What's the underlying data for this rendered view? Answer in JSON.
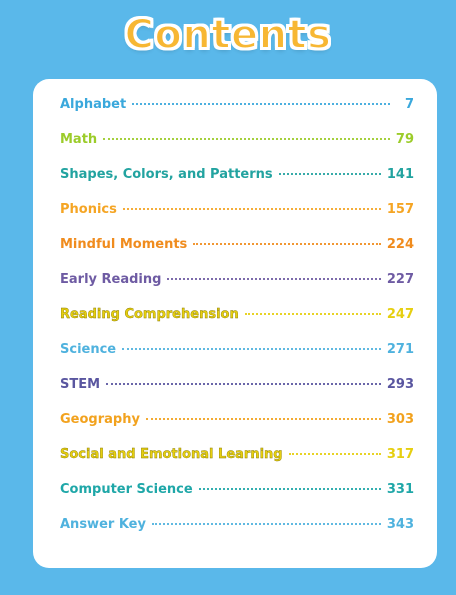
{
  "page": {
    "title": "Contents",
    "title_color": "#f7b733",
    "background_color": "#5ab8ea"
  },
  "toc": [
    {
      "label": "Alphabet",
      "page": "7",
      "color": "#3aa8dc"
    },
    {
      "label": "Math",
      "page": "79",
      "color": "#9ccc2a"
    },
    {
      "label": "Shapes, Colors, and Patterns",
      "page": "141",
      "color": "#22a3a0"
    },
    {
      "label": "Phonics",
      "page": "157",
      "color": "#f5a524"
    },
    {
      "label": "Mindful Moments",
      "page": "224",
      "color": "#f08c1e"
    },
    {
      "label": "Early Reading",
      "page": "227",
      "color": "#6e5ba3"
    },
    {
      "label": "Reading Comprehension",
      "page": "247",
      "color": "#e6cf10"
    },
    {
      "label": "Science",
      "page": "271",
      "color": "#4fb2de"
    },
    {
      "label": "STEM",
      "page": "293",
      "color": "#5a56a0"
    },
    {
      "label": "Geography",
      "page": "303",
      "color": "#f2a21e"
    },
    {
      "label": "Social and Emotional Learning",
      "page": "317",
      "color": "#e6cf10"
    },
    {
      "label": "Computer Science",
      "page": "331",
      "color": "#1fa7a8"
    },
    {
      "label": "Answer Key",
      "page": "343",
      "color": "#4fb2de"
    }
  ]
}
